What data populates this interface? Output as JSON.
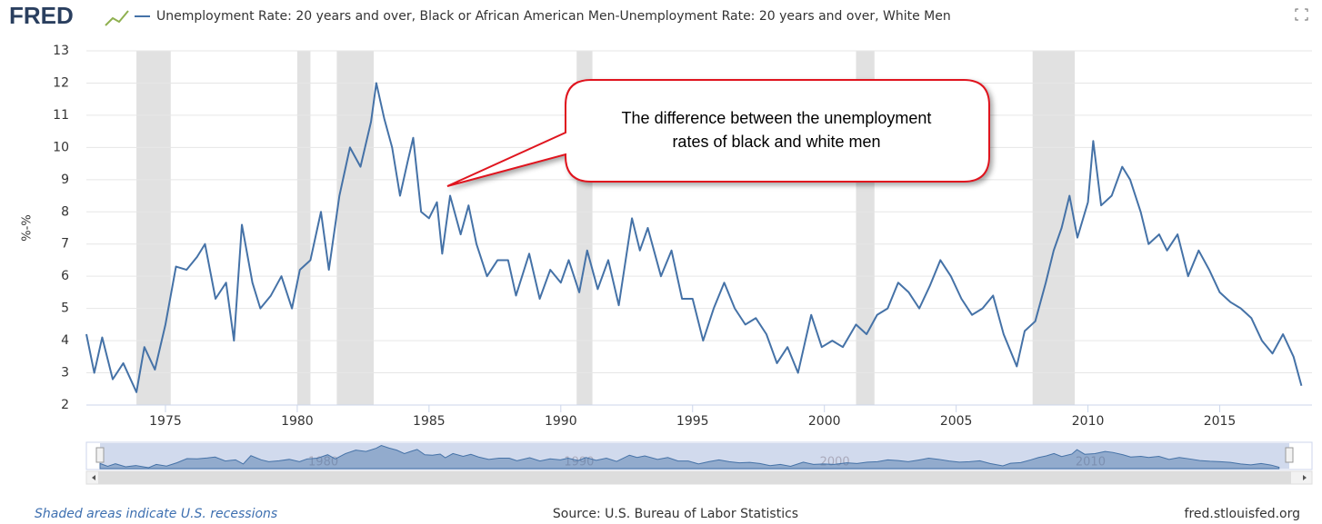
{
  "header": {
    "brand": "FRED"
  },
  "chart_data": {
    "type": "line",
    "series": [
      {
        "name": "Unemployment Rate: 20 years and over, Black or African American Men-Unemployment Rate: 20 years and over, White Men",
        "color": "#4572a7",
        "x": [
          1972.0,
          1972.3,
          1972.6,
          1973.0,
          1973.4,
          1973.9,
          1974.2,
          1974.6,
          1975.0,
          1975.4,
          1975.8,
          1976.2,
          1976.5,
          1976.9,
          1977.3,
          1977.6,
          1977.9,
          1978.3,
          1978.6,
          1979.0,
          1979.4,
          1979.8,
          1980.1,
          1980.5,
          1980.9,
          1981.2,
          1981.6,
          1982.0,
          1982.4,
          1982.8,
          1983.0,
          1983.3,
          1983.6,
          1983.9,
          1984.2,
          1984.4,
          1984.7,
          1985.0,
          1985.3,
          1985.5,
          1985.8,
          1986.2,
          1986.5,
          1986.8,
          1987.2,
          1987.6,
          1988.0,
          1988.3,
          1988.8,
          1989.2,
          1989.6,
          1990.0,
          1990.3,
          1990.7,
          1991.0,
          1991.4,
          1991.8,
          1992.2,
          1992.7,
          1993.0,
          1993.3,
          1993.8,
          1994.2,
          1994.6,
          1995.0,
          1995.4,
          1995.8,
          1996.2,
          1996.6,
          1997.0,
          1997.4,
          1997.8,
          1998.2,
          1998.6,
          1999.0,
          1999.5,
          1999.9,
          2000.3,
          2000.7,
          2001.2,
          2001.6,
          2002.0,
          2002.4,
          2002.8,
          2003.2,
          2003.6,
          2004.0,
          2004.4,
          2004.8,
          2005.2,
          2005.6,
          2006.0,
          2006.4,
          2006.8,
          2007.3,
          2007.6,
          2008.0,
          2008.4,
          2008.7,
          2009.0,
          2009.3,
          2009.6,
          2010.0,
          2010.2,
          2010.5,
          2010.9,
          2011.3,
          2011.6,
          2012.0,
          2012.3,
          2012.7,
          2013.0,
          2013.4,
          2013.8,
          2014.2,
          2014.6,
          2015.0,
          2015.4,
          2015.8,
          2016.2,
          2016.6,
          2017.0,
          2017.4,
          2017.8,
          2018.1
        ],
        "values": [
          4.2,
          3.0,
          4.1,
          2.8,
          3.3,
          2.4,
          3.8,
          3.1,
          4.5,
          6.3,
          6.2,
          6.6,
          7.0,
          5.3,
          5.8,
          4.0,
          7.6,
          5.8,
          5.0,
          5.4,
          6.0,
          5.0,
          6.2,
          6.5,
          8.0,
          6.2,
          8.5,
          10.0,
          9.4,
          10.8,
          12.0,
          10.9,
          10.0,
          8.5,
          9.6,
          10.3,
          8.0,
          7.8,
          8.3,
          6.7,
          8.5,
          7.3,
          8.2,
          7.0,
          6.0,
          6.5,
          6.5,
          5.4,
          6.7,
          5.3,
          6.2,
          5.8,
          6.5,
          5.5,
          6.8,
          5.6,
          6.5,
          5.1,
          7.8,
          6.8,
          7.5,
          6.0,
          6.8,
          5.3,
          5.3,
          4.0,
          5.0,
          5.8,
          5.0,
          4.5,
          4.7,
          4.2,
          3.3,
          3.8,
          3.0,
          4.8,
          3.8,
          4.0,
          3.8,
          4.5,
          4.2,
          4.8,
          5.0,
          5.8,
          5.5,
          5.0,
          5.7,
          6.5,
          6.0,
          5.3,
          4.8,
          5.0,
          5.4,
          4.2,
          3.2,
          4.3,
          4.6,
          5.8,
          6.8,
          7.5,
          8.5,
          7.2,
          8.3,
          10.2,
          8.2,
          8.5,
          9.4,
          9.0,
          8.0,
          7.0,
          7.3,
          6.8,
          7.3,
          6.0,
          6.8,
          6.2,
          5.5,
          5.2,
          5.0,
          4.7,
          4.0,
          3.6,
          4.2,
          3.5,
          2.6
        ]
      }
    ],
    "y_label": "%-%",
    "xlim": [
      1972,
      2018.5
    ],
    "xticks": [
      1975,
      1980,
      1985,
      1990,
      1995,
      2000,
      2005,
      2010,
      2015
    ],
    "ylim": [
      2,
      13
    ],
    "yticks": [
      2,
      3,
      4,
      5,
      6,
      7,
      8,
      9,
      10,
      11,
      12,
      13
    ],
    "grid": true,
    "recessions": [
      [
        1973.9,
        1975.2
      ],
      [
        1980.0,
        1980.5
      ],
      [
        1981.5,
        1982.9
      ],
      [
        1990.6,
        1991.2
      ],
      [
        2001.2,
        2001.9
      ],
      [
        2007.9,
        2009.5
      ]
    ],
    "recession_color": "#e1e1e1",
    "annotation": [
      "The difference between the unemployment",
      "rates of black and white men"
    ],
    "navigator_ticks": [
      1980,
      1990,
      2000,
      2010
    ]
  },
  "footer": {
    "note": "Shaded areas indicate U.S. recessions",
    "source": "Source: U.S. Bureau of Labor Statistics",
    "site": "fred.stlouisfed.org"
  }
}
